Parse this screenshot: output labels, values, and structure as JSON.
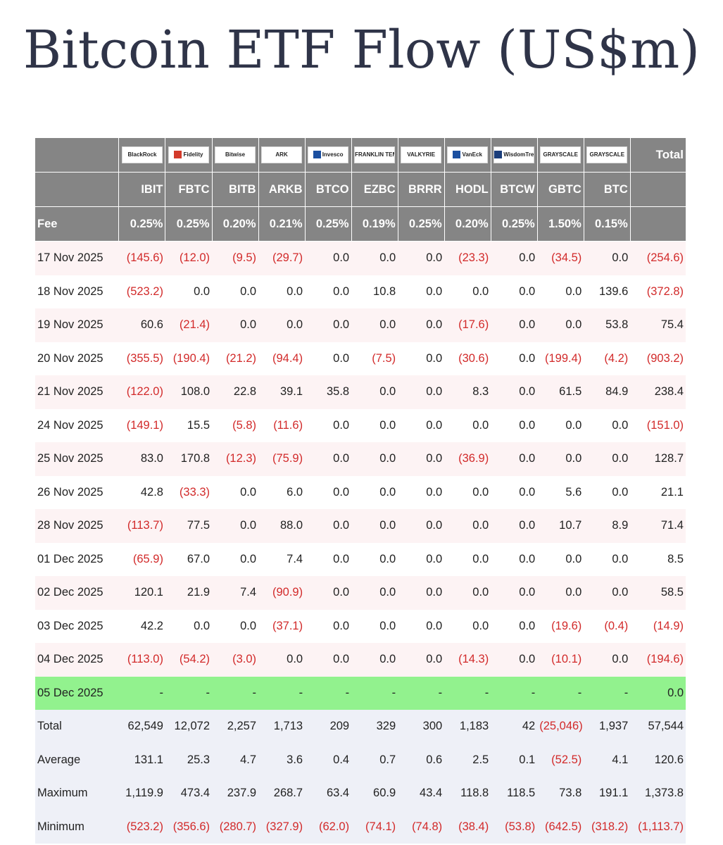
{
  "title": "Bitcoin ETF Flow (US$m)",
  "header": {
    "logos": [
      {
        "text": "BlackRock",
        "mark_color": ""
      },
      {
        "text": "Fidelity",
        "mark_color": "#d33a2a"
      },
      {
        "text": "Bitwise",
        "mark_color": ""
      },
      {
        "text": "ARK",
        "mark_color": ""
      },
      {
        "text": "Invesco",
        "mark_color": "#1b4fa0"
      },
      {
        "text": "FRANKLIN TEMPLETON",
        "mark_color": ""
      },
      {
        "text": "VALKYRIE",
        "mark_color": ""
      },
      {
        "text": "VanEck",
        "mark_color": "#1b4fa0"
      },
      {
        "text": "WisdomTree",
        "mark_color": "#1b3d7a"
      },
      {
        "text": "GRAYSCALE",
        "mark_color": ""
      },
      {
        "text": "GRAYSCALE",
        "mark_color": ""
      }
    ],
    "total_label": "Total",
    "tickers": [
      "IBIT",
      "FBTC",
      "BITB",
      "ARKB",
      "BTCO",
      "EZBC",
      "BRRR",
      "HODL",
      "BTCW",
      "GBTC",
      "BTC"
    ],
    "fee_label": "Fee",
    "fees": [
      "0.25%",
      "0.25%",
      "0.20%",
      "0.21%",
      "0.25%",
      "0.19%",
      "0.25%",
      "0.20%",
      "0.25%",
      "1.50%",
      "0.15%"
    ]
  },
  "rows": [
    {
      "date": "17 Nov 2025",
      "values": [
        "(145.6)",
        "(12.0)",
        "(9.5)",
        "(29.7)",
        "0.0",
        "0.0",
        "0.0",
        "(23.3)",
        "0.0",
        "(34.5)",
        "0.0"
      ],
      "total": "(254.6)"
    },
    {
      "date": "18 Nov 2025",
      "values": [
        "(523.2)",
        "0.0",
        "0.0",
        "0.0",
        "0.0",
        "10.8",
        "0.0",
        "0.0",
        "0.0",
        "0.0",
        "139.6"
      ],
      "total": "(372.8)"
    },
    {
      "date": "19 Nov 2025",
      "values": [
        "60.6",
        "(21.4)",
        "0.0",
        "0.0",
        "0.0",
        "0.0",
        "0.0",
        "(17.6)",
        "0.0",
        "0.0",
        "53.8"
      ],
      "total": "75.4"
    },
    {
      "date": "20 Nov 2025",
      "values": [
        "(355.5)",
        "(190.4)",
        "(21.2)",
        "(94.4)",
        "0.0",
        "(7.5)",
        "0.0",
        "(30.6)",
        "0.0",
        "(199.4)",
        "(4.2)"
      ],
      "total": "(903.2)"
    },
    {
      "date": "21 Nov 2025",
      "values": [
        "(122.0)",
        "108.0",
        "22.8",
        "39.1",
        "35.8",
        "0.0",
        "0.0",
        "8.3",
        "0.0",
        "61.5",
        "84.9"
      ],
      "total": "238.4"
    },
    {
      "date": "24 Nov 2025",
      "values": [
        "(149.1)",
        "15.5",
        "(5.8)",
        "(11.6)",
        "0.0",
        "0.0",
        "0.0",
        "0.0",
        "0.0",
        "0.0",
        "0.0"
      ],
      "total": "(151.0)"
    },
    {
      "date": "25 Nov 2025",
      "values": [
        "83.0",
        "170.8",
        "(12.3)",
        "(75.9)",
        "0.0",
        "0.0",
        "0.0",
        "(36.9)",
        "0.0",
        "0.0",
        "0.0"
      ],
      "total": "128.7"
    },
    {
      "date": "26 Nov 2025",
      "values": [
        "42.8",
        "(33.3)",
        "0.0",
        "6.0",
        "0.0",
        "0.0",
        "0.0",
        "0.0",
        "0.0",
        "5.6",
        "0.0"
      ],
      "total": "21.1"
    },
    {
      "date": "28 Nov 2025",
      "values": [
        "(113.7)",
        "77.5",
        "0.0",
        "88.0",
        "0.0",
        "0.0",
        "0.0",
        "0.0",
        "0.0",
        "10.7",
        "8.9"
      ],
      "total": "71.4"
    },
    {
      "date": "01 Dec 2025",
      "values": [
        "(65.9)",
        "67.0",
        "0.0",
        "7.4",
        "0.0",
        "0.0",
        "0.0",
        "0.0",
        "0.0",
        "0.0",
        "0.0"
      ],
      "total": "8.5"
    },
    {
      "date": "02 Dec 2025",
      "values": [
        "120.1",
        "21.9",
        "7.4",
        "(90.9)",
        "0.0",
        "0.0",
        "0.0",
        "0.0",
        "0.0",
        "0.0",
        "0.0"
      ],
      "total": "58.5"
    },
    {
      "date": "03 Dec 2025",
      "values": [
        "42.2",
        "0.0",
        "0.0",
        "(37.1)",
        "0.0",
        "0.0",
        "0.0",
        "0.0",
        "0.0",
        "(19.6)",
        "(0.4)"
      ],
      "total": "(14.9)"
    },
    {
      "date": "04 Dec 2025",
      "values": [
        "(113.0)",
        "(54.2)",
        "(3.0)",
        "0.0",
        "0.0",
        "0.0",
        "0.0",
        "(14.3)",
        "0.0",
        "(10.1)",
        "0.0"
      ],
      "total": "(194.6)"
    },
    {
      "date": "05 Dec 2025",
      "values": [
        "-",
        "-",
        "-",
        "-",
        "-",
        "-",
        "-",
        "-",
        "-",
        "-",
        "-"
      ],
      "total": "0.0",
      "highlight": true
    }
  ],
  "summary": [
    {
      "label": "Total",
      "values": [
        "62,549",
        "12,072",
        "2,257",
        "1,713",
        "209",
        "329",
        "300",
        "1,183",
        "42",
        "(25,046)",
        "1,937"
      ],
      "total": "57,544"
    },
    {
      "label": "Average",
      "values": [
        "131.1",
        "25.3",
        "4.7",
        "3.6",
        "0.4",
        "0.7",
        "0.6",
        "2.5",
        "0.1",
        "(52.5)",
        "4.1"
      ],
      "total": "120.6"
    },
    {
      "label": "Maximum",
      "values": [
        "1,119.9",
        "473.4",
        "237.9",
        "268.7",
        "63.4",
        "60.9",
        "43.4",
        "118.8",
        "118.5",
        "73.8",
        "191.1"
      ],
      "total": "1,373.8"
    },
    {
      "label": "Minimum",
      "values": [
        "(523.2)",
        "(356.6)",
        "(280.7)",
        "(327.9)",
        "(62.0)",
        "(74.1)",
        "(74.8)",
        "(38.4)",
        "(53.8)",
        "(642.5)",
        "(318.2)"
      ],
      "total": "(1,113.7)"
    }
  ],
  "colors": {
    "header_bg": "#858585",
    "negative": "#d22a2a",
    "row_tint": "#fdf3f4",
    "highlight": "#92f28e",
    "summary_bg": "#eef0f7",
    "title": "#2f3448"
  }
}
